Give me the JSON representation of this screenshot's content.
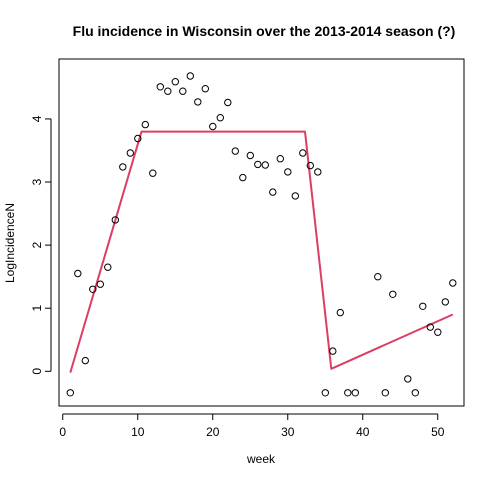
{
  "chart_data": {
    "type": "scatter",
    "title": "Flu incidence in Wisconsin over the 2013-2014 season (?)",
    "xlabel": "week",
    "ylabel": "LogIncidenceN",
    "xlim": [
      -0.5,
      53.5
    ],
    "ylim": [
      -0.55,
      4.95
    ],
    "xticks": [
      0,
      10,
      20,
      30,
      40,
      50
    ],
    "yticks": [
      0,
      1,
      2,
      3,
      4
    ],
    "grid": false,
    "legend": "none",
    "points": [
      [
        1,
        -0.34
      ],
      [
        2,
        1.55
      ],
      [
        3,
        0.17
      ],
      [
        4,
        1.3
      ],
      [
        5,
        1.38
      ],
      [
        6,
        1.65
      ],
      [
        7,
        2.4
      ],
      [
        8,
        3.24
      ],
      [
        9,
        3.46
      ],
      [
        10,
        3.69
      ],
      [
        11,
        3.91
      ],
      [
        12,
        3.14
      ],
      [
        13,
        4.51
      ],
      [
        14,
        4.44
      ],
      [
        15,
        4.59
      ],
      [
        16,
        4.44
      ],
      [
        17,
        4.68
      ],
      [
        18,
        4.27
      ],
      [
        19,
        4.48
      ],
      [
        20,
        3.88
      ],
      [
        21,
        4.02
      ],
      [
        22,
        4.26
      ],
      [
        23,
        3.49
      ],
      [
        24,
        3.07
      ],
      [
        25,
        3.42
      ],
      [
        26,
        3.28
      ],
      [
        27,
        3.27
      ],
      [
        28,
        2.84
      ],
      [
        29,
        3.37
      ],
      [
        30,
        3.16
      ],
      [
        31,
        2.78
      ],
      [
        32,
        3.46
      ],
      [
        33,
        3.26
      ],
      [
        34,
        3.16
      ],
      [
        35,
        -0.34
      ],
      [
        36,
        0.32
      ],
      [
        37,
        0.93
      ],
      [
        38,
        -0.34
      ],
      [
        39,
        -0.34
      ],
      [
        42,
        1.5
      ],
      [
        43,
        -0.34
      ],
      [
        44,
        1.22
      ],
      [
        46,
        -0.12
      ],
      [
        47,
        -0.34
      ],
      [
        48,
        1.03
      ],
      [
        49,
        0.7
      ],
      [
        50,
        0.62
      ],
      [
        51,
        1.1
      ],
      [
        52,
        1.4
      ]
    ],
    "fit_line": {
      "color": "#dc3d63",
      "points": [
        [
          1,
          -0.02
        ],
        [
          10.5,
          3.8
        ],
        [
          32.3,
          3.8
        ],
        [
          35.8,
          0.04
        ],
        [
          52,
          0.9
        ]
      ]
    }
  }
}
